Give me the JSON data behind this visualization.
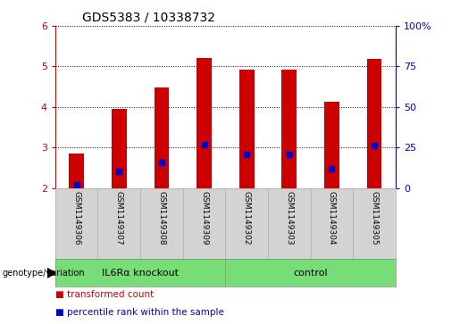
{
  "title": "GDS5383 / 10338732",
  "samples": [
    "GSM1149306",
    "GSM1149307",
    "GSM1149308",
    "GSM1149309",
    "GSM1149302",
    "GSM1149303",
    "GSM1149304",
    "GSM1149305"
  ],
  "bar_tops": [
    2.85,
    3.95,
    4.48,
    5.2,
    4.93,
    4.93,
    4.12,
    5.18
  ],
  "bar_bottom": 2.0,
  "bar_color": "#cc0000",
  "blue_positions": [
    2.07,
    2.4,
    2.62,
    3.08,
    2.83,
    2.82,
    2.47,
    3.05
  ],
  "blue_color": "#0000cc",
  "blue_size": 4,
  "ylim_left": [
    2,
    6
  ],
  "ylim_right": [
    0,
    100
  ],
  "yticks_left": [
    2,
    3,
    4,
    5,
    6
  ],
  "yticks_right": [
    0,
    25,
    50,
    75,
    100
  ],
  "ytick_labels_right": [
    "0",
    "25",
    "50",
    "75",
    "100%"
  ],
  "groups": [
    {
      "label": "IL6Rα knockout",
      "start": 0,
      "end": 3,
      "color": "#77dd77"
    },
    {
      "label": "control",
      "start": 4,
      "end": 7,
      "color": "#77dd77"
    }
  ],
  "group_label_prefix": "genotype/variation",
  "legend_items": [
    {
      "label": "transformed count",
      "color": "#cc0000"
    },
    {
      "label": "percentile rank within the sample",
      "color": "#0000cc"
    }
  ],
  "plot_bg": "#ffffff",
  "fig_bg": "#ffffff",
  "label_cell_bg": "#d3d3d3",
  "left_axis_color": "#cc0000",
  "right_axis_color": "#0000cc",
  "title_fontsize": 10,
  "tick_fontsize": 8,
  "label_fontsize": 6.5,
  "group_fontsize": 8,
  "legend_fontsize": 7.5
}
